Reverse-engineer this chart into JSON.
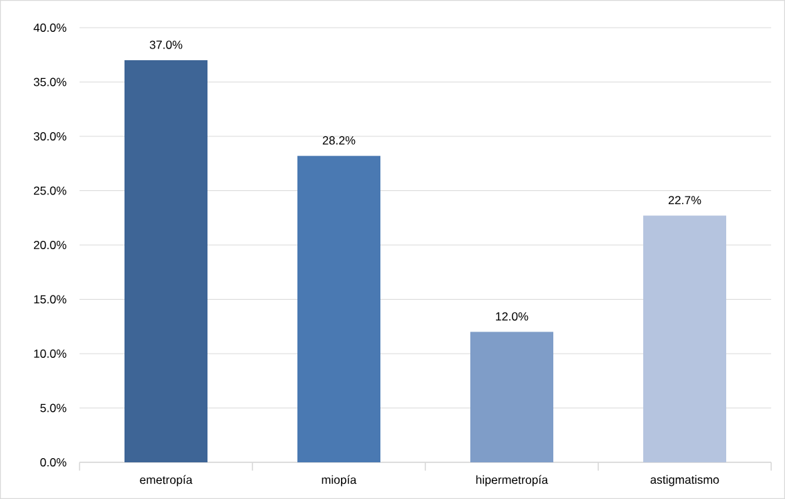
{
  "chart_data": {
    "type": "bar",
    "categories": [
      "emetropía",
      "miopía",
      "hipermetropía",
      "astigmatismo"
    ],
    "values": [
      37.0,
      28.2,
      12.0,
      22.7
    ],
    "colors": [
      "#3e6596",
      "#4a79b2",
      "#7f9dc8",
      "#b5c4df"
    ],
    "value_labels": [
      "37.0%",
      "28.2%",
      "12.0%",
      "22.7%"
    ],
    "ylim": [
      0,
      40
    ],
    "yticks": [
      {
        "value": 0,
        "label": "0.0%"
      },
      {
        "value": 5,
        "label": "5.0%"
      },
      {
        "value": 10,
        "label": "10.0%"
      },
      {
        "value": 15,
        "label": "15.0%"
      },
      {
        "value": 20,
        "label": "20.0%"
      },
      {
        "value": 25,
        "label": "25.0%"
      },
      {
        "value": 30,
        "label": "30.0%"
      },
      {
        "value": 35,
        "label": "35.0%"
      },
      {
        "value": 40,
        "label": "40.0%"
      }
    ],
    "grid": "y"
  }
}
